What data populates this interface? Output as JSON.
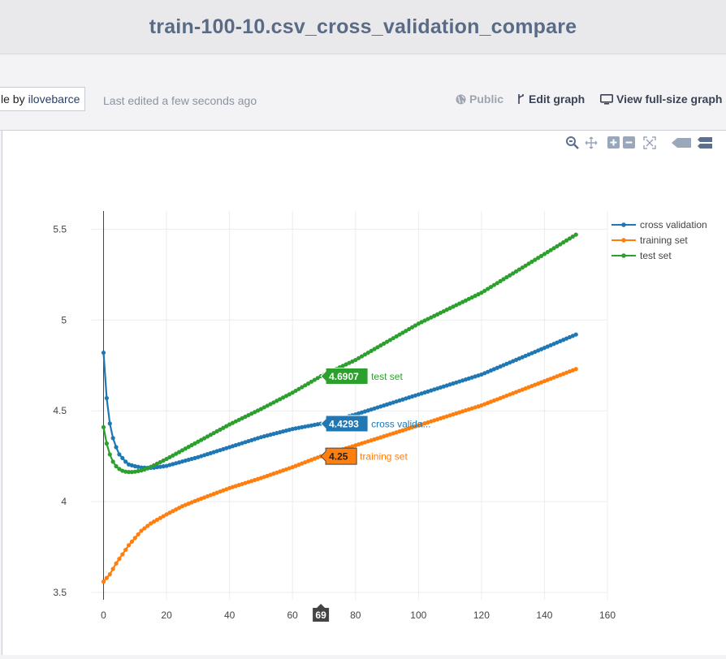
{
  "header": {
    "title": "train-100-10.csv_cross_validation_compare"
  },
  "toolbar": {
    "author_prefix": "le by",
    "author_name": "ilovebarce",
    "last_edited": "Last edited a few seconds ago",
    "public_label": "Public",
    "edit_label": "Edit graph",
    "view_label": "View full-size graph"
  },
  "modebar": {
    "icons": [
      "zoom-icon",
      "pan-icon",
      "zoom-in-icon",
      "zoom-out-icon",
      "autoscale-icon",
      "spike-icon",
      "compare-hover-icon"
    ]
  },
  "colors": {
    "cross_validation": "#1f77b4",
    "training_set": "#ff7f0e",
    "test_set": "#2ca02c"
  },
  "chart_data": {
    "type": "line",
    "title": "",
    "xlabel": "",
    "ylabel": "",
    "xlim": [
      -4,
      160
    ],
    "ylim": [
      3.46,
      5.6
    ],
    "xticks": [
      0,
      20,
      40,
      60,
      80,
      100,
      120,
      140,
      160
    ],
    "yticks": [
      3.5,
      4,
      4.5,
      5,
      5.5
    ],
    "xtick_labels": [
      "0",
      "20",
      "40",
      "60",
      "80",
      "100",
      "120",
      "140",
      "160"
    ],
    "ytick_labels": [
      "3.5",
      "4",
      "4.5",
      "5",
      "5.5"
    ],
    "grid": true,
    "legend_position": "top-right",
    "x_range": [
      0,
      150
    ],
    "series": [
      {
        "name": "cross validation",
        "key": "cross_validation",
        "x": [
          0,
          1,
          2,
          3,
          4,
          5,
          6,
          7,
          8,
          10,
          12,
          14,
          16,
          20,
          30,
          40,
          50,
          60,
          69,
          80,
          100,
          120,
          150
        ],
        "values": [
          4.82,
          4.57,
          4.43,
          4.35,
          4.3,
          4.26,
          4.24,
          4.22,
          4.205,
          4.195,
          4.188,
          4.186,
          4.187,
          4.197,
          4.245,
          4.3,
          4.355,
          4.4,
          4.4293,
          4.48,
          4.59,
          4.7,
          4.92
        ]
      },
      {
        "name": "training set",
        "key": "training_set",
        "x": [
          0,
          2,
          4,
          6,
          8,
          10,
          12,
          15,
          20,
          25,
          30,
          40,
          50,
          60,
          69,
          80,
          100,
          120,
          150
        ],
        "values": [
          3.56,
          3.6,
          3.66,
          3.71,
          3.76,
          3.8,
          3.84,
          3.88,
          3.93,
          3.975,
          4.01,
          4.075,
          4.13,
          4.19,
          4.25,
          4.31,
          4.42,
          4.53,
          4.73
        ]
      },
      {
        "name": "test set",
        "key": "test_set",
        "x": [
          0,
          1,
          2,
          3,
          4,
          5,
          6,
          7,
          8,
          9,
          10,
          12,
          14,
          16,
          20,
          30,
          40,
          50,
          60,
          69,
          80,
          100,
          120,
          150
        ],
        "values": [
          4.41,
          4.32,
          4.26,
          4.22,
          4.195,
          4.18,
          4.17,
          4.165,
          4.163,
          4.163,
          4.165,
          4.172,
          4.183,
          4.2,
          4.235,
          4.33,
          4.425,
          4.51,
          4.6,
          4.6907,
          4.78,
          4.98,
          5.15,
          5.47
        ]
      }
    ],
    "hover": {
      "x": 69,
      "x_label": "69",
      "labels": [
        {
          "key": "test_set",
          "value": "4.6907",
          "text": "test set",
          "y": 4.6907
        },
        {
          "key": "cross_validation",
          "value": "4.4293",
          "text": "cross valida...",
          "y": 4.4293
        },
        {
          "key": "training_set",
          "value": "4.25",
          "text": "training set",
          "y": 4.25
        }
      ]
    }
  }
}
